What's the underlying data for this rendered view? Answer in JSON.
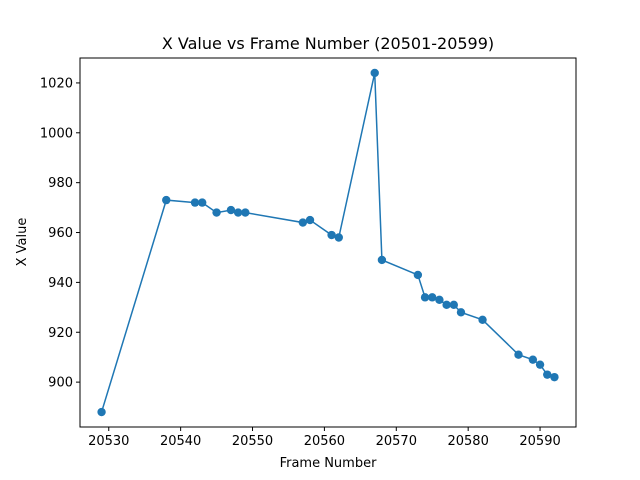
{
  "chart_data": {
    "type": "line",
    "title": "X Value vs Frame Number (20501-20599)",
    "xlabel": "Frame Number",
    "ylabel": "X Value",
    "xlim": [
      20526,
      20595
    ],
    "ylim": [
      882,
      1030
    ],
    "xticks": [
      20530,
      20540,
      20550,
      20560,
      20570,
      20580,
      20590
    ],
    "yticks": [
      900,
      920,
      940,
      960,
      980,
      1000,
      1020
    ],
    "grid": false,
    "marker": "circle",
    "color": "#1f77b4",
    "series": [
      {
        "name": "X Value",
        "x": [
          20529,
          20538,
          20542,
          20543,
          20545,
          20547,
          20548,
          20549,
          20557,
          20558,
          20561,
          20562,
          20567,
          20568,
          20573,
          20574,
          20575,
          20576,
          20577,
          20578,
          20579,
          20582,
          20587,
          20589,
          20590,
          20591,
          20592
        ],
        "y": [
          888,
          973,
          972,
          972,
          968,
          969,
          968,
          968,
          964,
          965,
          959,
          958,
          1024,
          949,
          943,
          934,
          934,
          933,
          931,
          931,
          928,
          925,
          911,
          909,
          907,
          903,
          902
        ]
      }
    ]
  }
}
